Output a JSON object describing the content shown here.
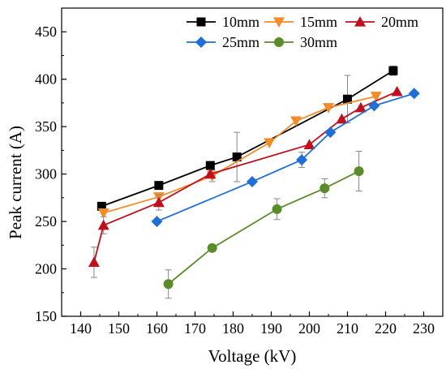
{
  "chart_data": {
    "type": "line",
    "title": "",
    "xlabel": "Voltage (kV)",
    "ylabel": "Peak current (A)",
    "xlim": [
      135,
      235
    ],
    "ylim": [
      150,
      475
    ],
    "xticks": [
      140,
      150,
      160,
      170,
      180,
      190,
      200,
      210,
      220,
      230
    ],
    "yticks": [
      150,
      200,
      250,
      300,
      350,
      400,
      450
    ],
    "grid": false,
    "legend_position": "top-right",
    "series": [
      {
        "name": "10mm",
        "color": "#000000",
        "marker": "square",
        "x": [
          145.5,
          160.5,
          174,
          181,
          210,
          222
        ],
        "y": [
          266,
          288,
          309,
          318,
          379,
          409
        ],
        "err": [
          null,
          null,
          null,
          26,
          25,
          5
        ]
      },
      {
        "name": "15mm",
        "color": "#f28c28",
        "marker": "triangle-down",
        "x": [
          146,
          160.5,
          174.5,
          189.5,
          196.5,
          205,
          217.5
        ],
        "y": [
          259,
          276,
          298,
          333,
          356,
          370,
          382
        ],
        "err": [
          null,
          null,
          6,
          null,
          null,
          null,
          null
        ]
      },
      {
        "name": "20mm",
        "color": "#c0101e",
        "marker": "triangle-up",
        "x": [
          143.5,
          146,
          160.5,
          174,
          200,
          208.5,
          213.5,
          223
        ],
        "y": [
          207,
          246,
          270,
          300,
          331,
          358,
          370,
          387
        ],
        "err": [
          16,
          9,
          8,
          null,
          null,
          null,
          null,
          null
        ]
      },
      {
        "name": "25mm",
        "color": "#1f6fd6",
        "marker": "diamond",
        "x": [
          160,
          185,
          198,
          205.5,
          217,
          227.5
        ],
        "y": [
          250,
          292,
          315,
          344,
          372,
          385
        ],
        "err": [
          null,
          null,
          8,
          null,
          null,
          null
        ]
      },
      {
        "name": "30mm",
        "color": "#5b8c2a",
        "marker": "circle",
        "x": [
          163,
          174.5,
          191.5,
          204,
          213
        ],
        "y": [
          184,
          222,
          263,
          285,
          303
        ],
        "err": [
          15,
          null,
          11,
          10,
          21
        ]
      }
    ]
  }
}
